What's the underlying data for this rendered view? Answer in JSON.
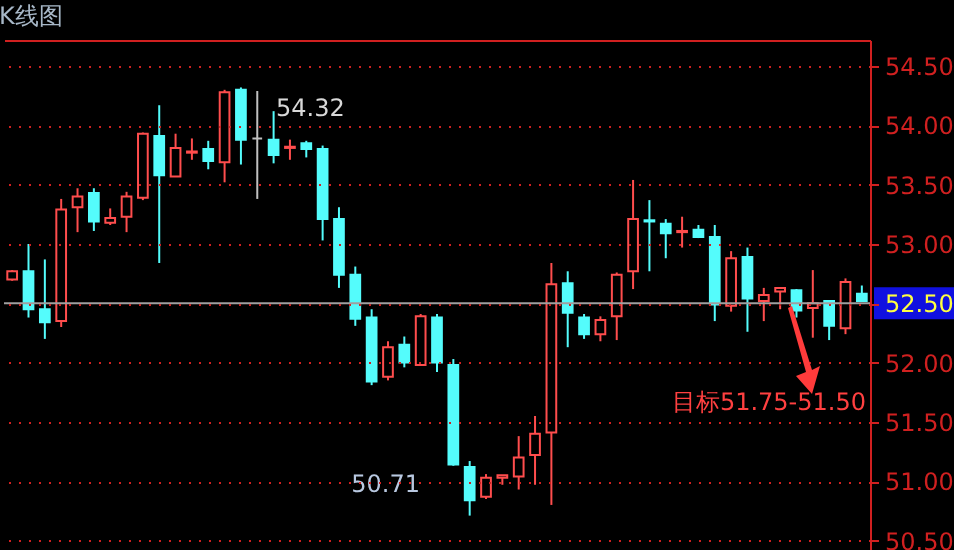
{
  "chart_data": {
    "type": "candlestick",
    "title": "K线图",
    "categories": [
      null,
      null,
      null,
      null,
      null,
      null,
      null,
      null,
      null,
      null,
      null,
      null,
      null,
      null,
      null,
      null,
      null,
      null,
      null,
      null,
      null,
      null,
      null,
      null,
      null,
      null,
      null,
      null,
      null,
      null,
      null,
      null,
      null,
      null,
      null,
      null,
      null,
      null,
      null,
      null,
      null,
      null,
      null,
      null,
      null,
      null,
      null,
      null,
      null,
      null,
      null,
      null,
      null
    ],
    "ohlc": [
      [
        52.7,
        52.78,
        52.69,
        52.77
      ],
      [
        52.77,
        53.0,
        52.38,
        52.45
      ],
      [
        52.45,
        52.87,
        52.2,
        52.34
      ],
      [
        52.35,
        53.38,
        52.3,
        53.29
      ],
      [
        53.31,
        53.47,
        53.1,
        53.4
      ],
      [
        53.43,
        53.47,
        53.11,
        53.19
      ],
      [
        53.18,
        53.3,
        53.16,
        53.22
      ],
      [
        53.23,
        53.44,
        53.1,
        53.4
      ],
      [
        53.39,
        53.94,
        53.37,
        53.93
      ],
      [
        53.91,
        54.17,
        52.84,
        53.58
      ],
      [
        53.57,
        53.93,
        53.57,
        53.81
      ],
      [
        53.77,
        53.89,
        53.71,
        53.78
      ],
      [
        53.8,
        53.87,
        53.63,
        53.7
      ],
      [
        53.69,
        54.3,
        53.52,
        54.28
      ],
      [
        54.3,
        54.32,
        53.67,
        53.88
      ],
      [
        53.89,
        54.29,
        53.38,
        53.89
      ],
      [
        53.88,
        54.12,
        53.68,
        53.75
      ],
      [
        53.81,
        53.88,
        53.71,
        53.82
      ],
      [
        53.85,
        53.87,
        53.73,
        53.8
      ],
      [
        53.8,
        53.83,
        53.03,
        53.21
      ],
      [
        53.21,
        53.31,
        52.63,
        52.74
      ],
      [
        52.74,
        52.81,
        52.31,
        52.37
      ],
      [
        52.38,
        52.45,
        51.81,
        51.84
      ],
      [
        51.88,
        52.18,
        51.85,
        52.13
      ],
      [
        52.15,
        52.22,
        51.96,
        52.0
      ],
      [
        51.98,
        52.41,
        51.98,
        52.39
      ],
      [
        52.38,
        52.41,
        51.92,
        52.0
      ],
      [
        51.98,
        52.03,
        51.13,
        51.14
      ],
      [
        51.12,
        51.17,
        50.71,
        50.84
      ],
      [
        50.87,
        51.06,
        50.85,
        51.03
      ],
      [
        51.03,
        51.05,
        50.97,
        51.05
      ],
      [
        51.04,
        51.38,
        50.93,
        51.2
      ],
      [
        51.22,
        51.55,
        50.97,
        51.4
      ],
      [
        51.41,
        52.84,
        50.8,
        52.66
      ],
      [
        52.67,
        52.77,
        52.13,
        52.42
      ],
      [
        52.38,
        52.41,
        52.2,
        52.24
      ],
      [
        52.24,
        52.39,
        52.18,
        52.36
      ],
      [
        52.39,
        52.76,
        52.19,
        52.74
      ],
      [
        52.77,
        53.54,
        52.62,
        53.21
      ],
      [
        53.2,
        53.37,
        52.77,
        53.19
      ],
      [
        53.17,
        53.21,
        52.88,
        53.09
      ],
      [
        53.1,
        53.23,
        52.97,
        53.11
      ],
      [
        53.12,
        53.16,
        53.05,
        53.06
      ],
      [
        53.06,
        53.16,
        52.35,
        52.49
      ],
      [
        52.48,
        52.94,
        52.43,
        52.88
      ],
      [
        52.89,
        52.97,
        52.26,
        52.54
      ],
      [
        52.52,
        52.63,
        52.35,
        52.57
      ],
      [
        52.6,
        52.63,
        52.45,
        52.63
      ],
      [
        52.61,
        52.62,
        52.38,
        52.44
      ],
      [
        52.46,
        52.78,
        52.21,
        52.5
      ],
      [
        52.52,
        52.52,
        52.19,
        52.31
      ],
      [
        52.29,
        52.71,
        52.24,
        52.68
      ],
      [
        52.58,
        52.65,
        52.52,
        52.52
      ]
    ],
    "colors": [
      "#ff4d4d",
      "#54fcfc",
      "#54fcfc",
      "#ff4d4d",
      "#ff4d4d",
      "#54fcfc",
      "#ff4d4d",
      "#ff4d4d",
      "#ff4d4d",
      "#54fcfc",
      "#ff4d4d",
      "#ff4d4d",
      "#54fcfc",
      "#ff4d4d",
      "#54fcfc",
      "#c0c0c0",
      "#54fcfc",
      "#ff4d4d",
      "#54fcfc",
      "#54fcfc",
      "#54fcfc",
      "#54fcfc",
      "#54fcfc",
      "#ff4d4d",
      "#54fcfc",
      "#ff4d4d",
      "#54fcfc",
      "#54fcfc",
      "#54fcfc",
      "#ff4d4d",
      "#ff4d4d",
      "#ff4d4d",
      "#ff4d4d",
      "#ff4d4d",
      "#54fcfc",
      "#54fcfc",
      "#ff4d4d",
      "#ff4d4d",
      "#ff4d4d",
      "#54fcfc",
      "#54fcfc",
      "#ff4d4d",
      "#54fcfc",
      "#54fcfc",
      "#ff4d4d",
      "#54fcfc",
      "#ff4d4d",
      "#ff4d4d",
      "#54fcfc",
      "#ff4d4d",
      "#54fcfc",
      "#ff4d4d",
      "#54fcfc"
    ],
    "ylim": [
      50.42,
      54.72
    ],
    "yticks": [
      {
        "value": 50.5,
        "label": "50.50"
      },
      {
        "value": 51,
        "label": "51.00"
      },
      {
        "value": 51.5,
        "label": "51.50"
      },
      {
        "value": 52,
        "label": "52.00"
      },
      {
        "value": 52.5,
        "label": "52.50"
      },
      {
        "value": 53,
        "label": "53.00"
      },
      {
        "value": 53.5,
        "label": "53.50"
      },
      {
        "value": 54,
        "label": "54.00"
      },
      {
        "value": 54.5,
        "label": "54.50"
      }
    ],
    "grid": "y",
    "tick_labels": "y",
    "ref_lines": [
      {
        "axis": "y",
        "value": 52.5,
        "color": "#a0a0a0"
      }
    ],
    "annotations": [
      "54.32",
      "50.71",
      "目标51.75-51.50"
    ]
  }
}
